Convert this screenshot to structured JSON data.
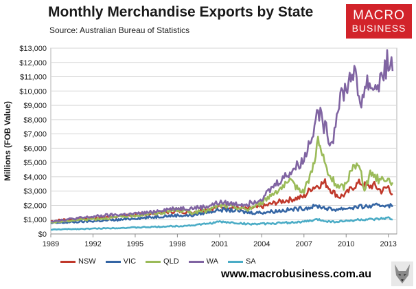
{
  "header": {
    "title": "Monthly Merchandise Exports by State",
    "source": "Source: Australian Bureau of Statistics"
  },
  "brand": {
    "line1": "MACRO",
    "line2": "BUSINESS",
    "color": "#d2232a"
  },
  "footer": {
    "url": "www.macrobusiness.com.au",
    "logo_icon": "wolf-icon"
  },
  "chart_data": {
    "type": "line",
    "title": "Monthly Merchandise Exports by State",
    "subtitle": "Source: Australian Bureau of Statistics",
    "xlabel": "",
    "ylabel": "Millions (FOB Value)",
    "xlim": [
      1989,
      2013.6
    ],
    "ylim": [
      0,
      13000
    ],
    "x_ticks": [
      1989,
      1992,
      1995,
      1998,
      2001,
      2004,
      2007,
      2010,
      2013
    ],
    "y_ticks": [
      0,
      1000,
      2000,
      3000,
      4000,
      5000,
      6000,
      7000,
      8000,
      9000,
      10000,
      11000,
      12000,
      13000
    ],
    "y_tick_labels": [
      "$0",
      "$1,000",
      "$2,000",
      "$3,000",
      "$4,000",
      "$5,000",
      "$6,000",
      "$7,000",
      "$8,000",
      "$9,000",
      "$10,000",
      "$11,000",
      "$12,000",
      "$13,000"
    ],
    "grid": true,
    "legend_position": "bottom",
    "series": [
      {
        "name": "NSW",
        "color": "#c0392b",
        "points": [
          [
            1989,
            900
          ],
          [
            1990,
            1000
          ],
          [
            1991,
            1050
          ],
          [
            1992,
            1100
          ],
          [
            1993,
            1200
          ],
          [
            1994,
            1250
          ],
          [
            1995,
            1350
          ],
          [
            1996,
            1400
          ],
          [
            1997,
            1500
          ],
          [
            1998,
            1600
          ],
          [
            1999,
            1500
          ],
          [
            2000,
            1700
          ],
          [
            2001,
            1900
          ],
          [
            2002,
            1850
          ],
          [
            2003,
            1750
          ],
          [
            2004,
            1900
          ],
          [
            2005,
            2200
          ],
          [
            2006,
            2400
          ],
          [
            2007,
            2600
          ],
          [
            2007.5,
            3200
          ],
          [
            2008.5,
            3600
          ],
          [
            2009,
            3000
          ],
          [
            2009.5,
            2600
          ],
          [
            2010,
            2800
          ],
          [
            2010.5,
            3300
          ],
          [
            2011,
            3600
          ],
          [
            2011.5,
            3300
          ],
          [
            2012,
            3400
          ],
          [
            2012.5,
            3000
          ],
          [
            2013,
            3300
          ],
          [
            2013.3,
            2800
          ]
        ]
      },
      {
        "name": "VIC",
        "color": "#3465a4",
        "points": [
          [
            1989,
            750
          ],
          [
            1990,
            800
          ],
          [
            1991,
            850
          ],
          [
            1992,
            900
          ],
          [
            1993,
            950
          ],
          [
            1994,
            1000
          ],
          [
            1995,
            1100
          ],
          [
            1996,
            1150
          ],
          [
            1997,
            1250
          ],
          [
            1998,
            1300
          ],
          [
            1999,
            1300
          ],
          [
            2000,
            1500
          ],
          [
            2001,
            1700
          ],
          [
            2002,
            1650
          ],
          [
            2003,
            1500
          ],
          [
            2004,
            1500
          ],
          [
            2005,
            1600
          ],
          [
            2006,
            1700
          ],
          [
            2007,
            1800
          ],
          [
            2008,
            1950
          ],
          [
            2009,
            1700
          ],
          [
            2010,
            1800
          ],
          [
            2011,
            1900
          ],
          [
            2012,
            1950
          ],
          [
            2013,
            2050
          ],
          [
            2013.3,
            1900
          ]
        ]
      },
      {
        "name": "QLD",
        "color": "#9bbb59",
        "points": [
          [
            1989,
            800
          ],
          [
            1990,
            900
          ],
          [
            1991,
            1000
          ],
          [
            1992,
            1050
          ],
          [
            1993,
            1100
          ],
          [
            1994,
            1200
          ],
          [
            1995,
            1300
          ],
          [
            1996,
            1400
          ],
          [
            1997,
            1500
          ],
          [
            1998,
            1700
          ],
          [
            1999,
            1500
          ],
          [
            2000,
            1600
          ],
          [
            2001,
            2000
          ],
          [
            2002,
            1900
          ],
          [
            2003,
            1700
          ],
          [
            2004,
            2200
          ],
          [
            2005,
            3000
          ],
          [
            2006,
            3600
          ],
          [
            2007,
            3000
          ],
          [
            2007.5,
            4200
          ],
          [
            2008,
            6500
          ],
          [
            2008.3,
            5500
          ],
          [
            2008.7,
            4200
          ],
          [
            2009,
            3800
          ],
          [
            2009.5,
            3200
          ],
          [
            2010,
            3400
          ],
          [
            2010.5,
            5000
          ],
          [
            2011,
            4500
          ],
          [
            2011.3,
            3200
          ],
          [
            2011.8,
            4300
          ],
          [
            2012.3,
            3800
          ],
          [
            2012.8,
            3900
          ],
          [
            2013.3,
            3600
          ]
        ]
      },
      {
        "name": "WA",
        "color": "#8064a2",
        "points": [
          [
            1989,
            900
          ],
          [
            1990,
            1000
          ],
          [
            1991,
            1100
          ],
          [
            1992,
            1200
          ],
          [
            1993,
            1300
          ],
          [
            1994,
            1350
          ],
          [
            1995,
            1400
          ],
          [
            1996,
            1500
          ],
          [
            1997,
            1700
          ],
          [
            1998,
            1800
          ],
          [
            1999,
            1800
          ],
          [
            2000,
            1900
          ],
          [
            2001,
            2200
          ],
          [
            2002,
            2100
          ],
          [
            2003,
            2100
          ],
          [
            2004,
            2500
          ],
          [
            2005,
            3500
          ],
          [
            2006,
            4300
          ],
          [
            2007,
            5200
          ],
          [
            2007.5,
            6800
          ],
          [
            2008,
            8600
          ],
          [
            2008.5,
            7400
          ],
          [
            2009,
            6300
          ],
          [
            2009.5,
            9500
          ],
          [
            2010,
            10200
          ],
          [
            2010.5,
            11500
          ],
          [
            2011,
            9200
          ],
          [
            2011.5,
            10600
          ],
          [
            2012,
            10200
          ],
          [
            2012.5,
            10800
          ],
          [
            2013,
            12200
          ],
          [
            2013.3,
            11400
          ]
        ]
      },
      {
        "name": "SA",
        "color": "#4bacc6",
        "points": [
          [
            1989,
            300
          ],
          [
            1990,
            330
          ],
          [
            1991,
            350
          ],
          [
            1992,
            370
          ],
          [
            1993,
            400
          ],
          [
            1994,
            420
          ],
          [
            1995,
            450
          ],
          [
            1996,
            480
          ],
          [
            1997,
            520
          ],
          [
            1998,
            550
          ],
          [
            1999,
            600
          ],
          [
            2000,
            700
          ],
          [
            2001,
            850
          ],
          [
            2002,
            780
          ],
          [
            2003,
            700
          ],
          [
            2004,
            700
          ],
          [
            2005,
            750
          ],
          [
            2006,
            800
          ],
          [
            2007,
            850
          ],
          [
            2008,
            1000
          ],
          [
            2009,
            850
          ],
          [
            2010,
            900
          ],
          [
            2011,
            1000
          ],
          [
            2012,
            1000
          ],
          [
            2013,
            1100
          ],
          [
            2013.3,
            1000
          ]
        ]
      }
    ]
  }
}
